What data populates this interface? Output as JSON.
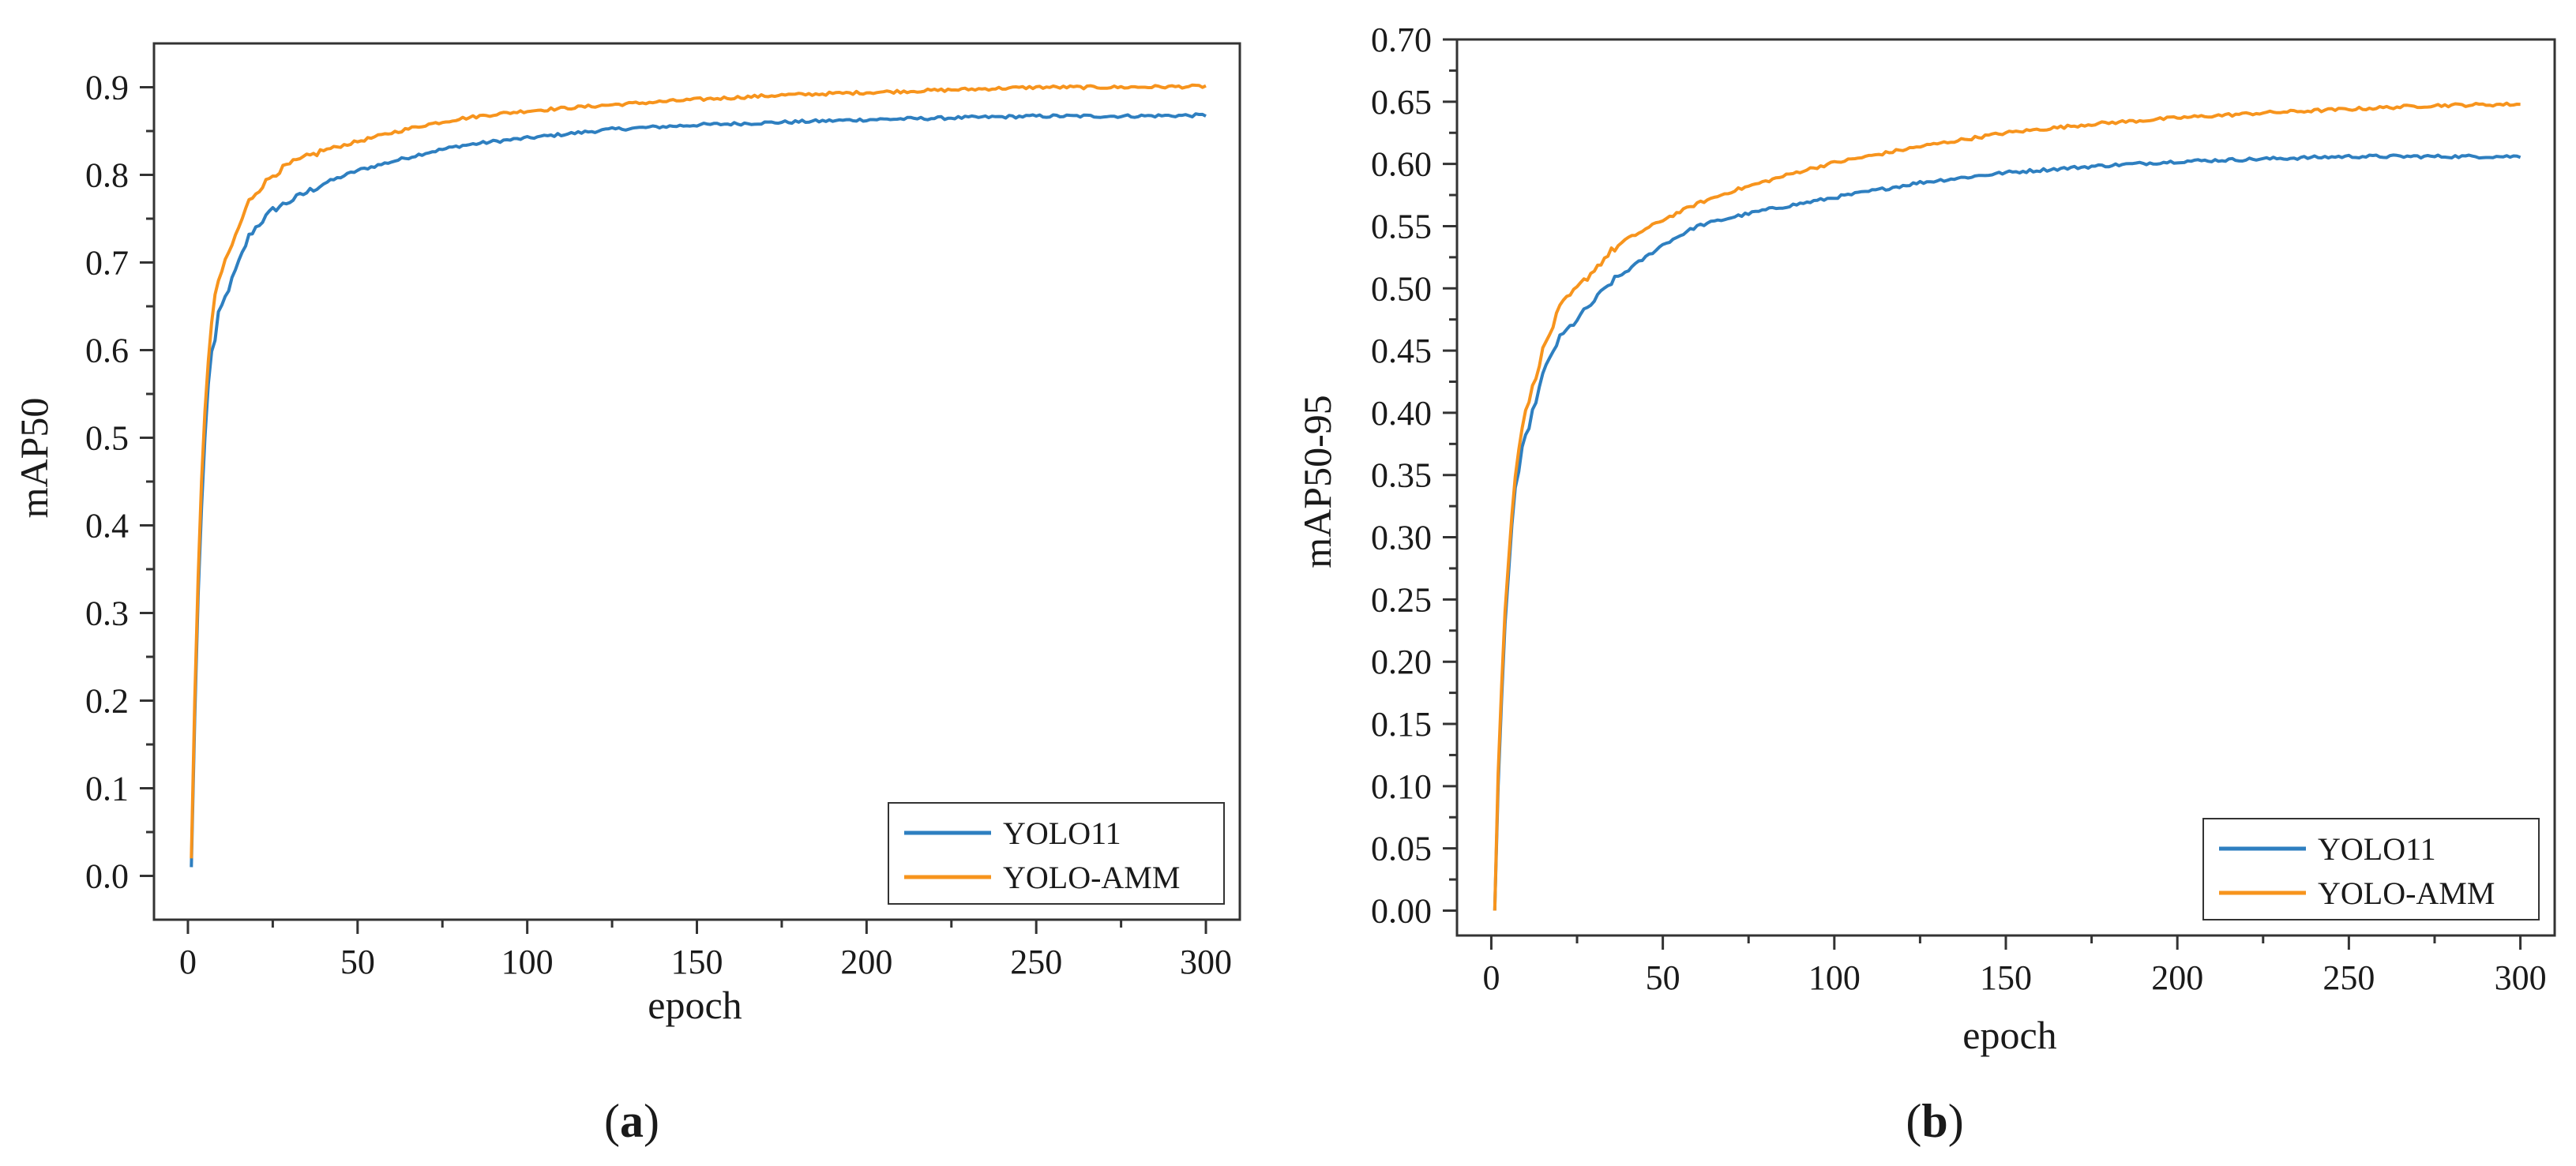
{
  "colors": {
    "series_1": "#2e7fc0",
    "series_2": "#f7941d",
    "axis": "#333333"
  },
  "chart_data": [
    {
      "type": "line",
      "panel_label": "(a)",
      "panel_letter": "a",
      "title": "",
      "xlabel": "epoch",
      "ylabel": "mAP50",
      "xlim": [
        -10,
        310
      ],
      "ylim": [
        -0.05,
        0.95
      ],
      "xticks": [
        0,
        50,
        100,
        150,
        200,
        250,
        300
      ],
      "xtick_labels": [
        "0",
        "50",
        "100",
        "150",
        "200",
        "250",
        "300"
      ],
      "yticks": [
        0.0,
        0.1,
        0.2,
        0.3,
        0.4,
        0.5,
        0.6,
        0.7,
        0.8,
        0.9
      ],
      "ytick_labels": [
        "0.0",
        "0.1",
        "0.2",
        "0.3",
        "0.4",
        "0.5",
        "0.6",
        "0.7",
        "0.8",
        "0.9"
      ],
      "legend_position": "bottom-right",
      "series": [
        {
          "name": "YOLO11",
          "x": [
            1,
            2,
            3,
            4,
            5,
            6,
            7,
            8,
            9,
            10,
            12,
            15,
            18,
            20,
            25,
            30,
            35,
            40,
            50,
            60,
            70,
            80,
            90,
            100,
            125,
            150,
            175,
            200,
            225,
            250,
            275,
            300
          ],
          "y": [
            0.01,
            0.18,
            0.32,
            0.42,
            0.5,
            0.56,
            0.6,
            0.61,
            0.64,
            0.65,
            0.67,
            0.7,
            0.73,
            0.74,
            0.76,
            0.77,
            0.78,
            0.79,
            0.805,
            0.815,
            0.825,
            0.833,
            0.838,
            0.842,
            0.852,
            0.857,
            0.86,
            0.863,
            0.865,
            0.867,
            0.867,
            0.868
          ]
        },
        {
          "name": "YOLO-AMM",
          "x": [
            1,
            2,
            3,
            4,
            5,
            6,
            7,
            8,
            9,
            10,
            12,
            15,
            18,
            20,
            25,
            30,
            35,
            40,
            50,
            60,
            70,
            80,
            90,
            100,
            125,
            150,
            175,
            200,
            225,
            250,
            275,
            300
          ],
          "y": [
            0.02,
            0.2,
            0.34,
            0.45,
            0.53,
            0.59,
            0.63,
            0.66,
            0.68,
            0.69,
            0.71,
            0.74,
            0.77,
            0.78,
            0.8,
            0.812,
            0.82,
            0.828,
            0.838,
            0.848,
            0.857,
            0.864,
            0.869,
            0.873,
            0.88,
            0.886,
            0.891,
            0.894,
            0.897,
            0.9,
            0.9,
            0.901
          ]
        }
      ]
    },
    {
      "type": "line",
      "panel_label": "(b)",
      "panel_letter": "b",
      "title": "",
      "xlabel": "epoch",
      "ylabel": "mAP50-95",
      "xlim": [
        -10,
        310
      ],
      "ylim": [
        -0.02,
        0.7
      ],
      "xticks": [
        0,
        50,
        100,
        150,
        200,
        250,
        300
      ],
      "xtick_labels": [
        "0",
        "50",
        "100",
        "150",
        "200",
        "250",
        "300"
      ],
      "yticks": [
        0.0,
        0.05,
        0.1,
        0.15,
        0.2,
        0.25,
        0.3,
        0.35,
        0.4,
        0.45,
        0.5,
        0.55,
        0.6,
        0.65,
        0.7
      ],
      "ytick_labels": [
        "0.00",
        "0.05",
        "0.10",
        "0.15",
        "0.20",
        "0.25",
        "0.30",
        "0.35",
        "0.40",
        "0.45",
        "0.50",
        "0.55",
        "0.60",
        "0.65",
        "0.70"
      ],
      "legend_position": "bottom-right",
      "series": [
        {
          "name": "YOLO11",
          "x": [
            1,
            2,
            3,
            4,
            5,
            6,
            7,
            8,
            9,
            10,
            12,
            15,
            18,
            20,
            25,
            30,
            35,
            40,
            50,
            60,
            70,
            80,
            90,
            100,
            125,
            150,
            175,
            200,
            225,
            250,
            275,
            300
          ],
          "y": [
            0.0,
            0.1,
            0.17,
            0.23,
            0.27,
            0.31,
            0.34,
            0.35,
            0.37,
            0.38,
            0.4,
            0.43,
            0.45,
            0.46,
            0.475,
            0.49,
            0.505,
            0.515,
            0.535,
            0.55,
            0.557,
            0.563,
            0.568,
            0.573,
            0.585,
            0.593,
            0.598,
            0.602,
            0.604,
            0.606,
            0.606,
            0.606
          ]
        },
        {
          "name": "YOLO-AMM",
          "x": [
            1,
            2,
            3,
            4,
            5,
            6,
            7,
            8,
            9,
            10,
            12,
            15,
            18,
            20,
            25,
            30,
            35,
            40,
            50,
            60,
            70,
            80,
            90,
            100,
            125,
            150,
            175,
            200,
            225,
            250,
            275,
            300
          ],
          "y": [
            0.0,
            0.11,
            0.18,
            0.24,
            0.28,
            0.32,
            0.35,
            0.37,
            0.39,
            0.4,
            0.42,
            0.45,
            0.47,
            0.485,
            0.5,
            0.515,
            0.53,
            0.54,
            0.555,
            0.568,
            0.578,
            0.586,
            0.594,
            0.601,
            0.614,
            0.625,
            0.632,
            0.637,
            0.641,
            0.644,
            0.647,
            0.648
          ]
        }
      ]
    }
  ]
}
